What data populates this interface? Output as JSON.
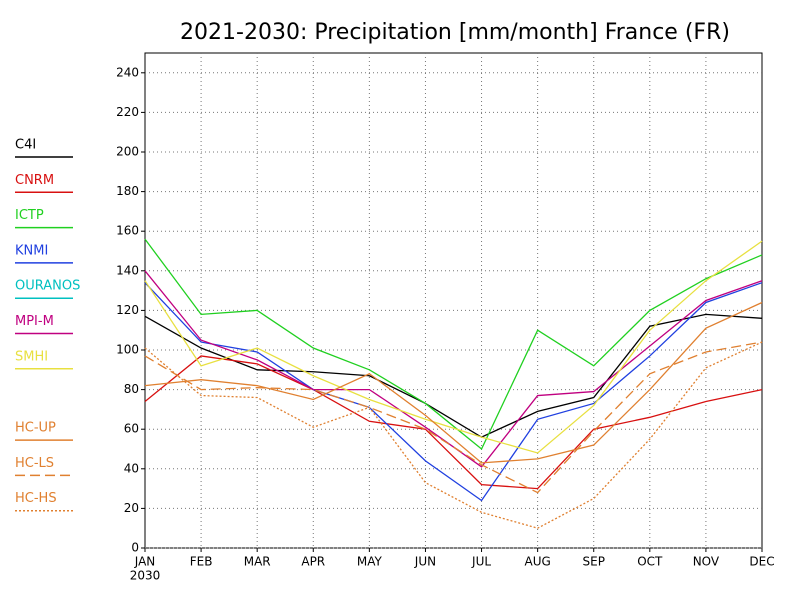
{
  "chart_data": {
    "type": "line",
    "title": "2021-2030: Precipitation [mm/month] France (FR)",
    "categories": [
      "JAN",
      "FEB",
      "MAR",
      "APR",
      "MAY",
      "JUN",
      "JUL",
      "AUG",
      "SEP",
      "OCT",
      "NOV",
      "DEC"
    ],
    "year_label": "2030",
    "ylim": [
      0,
      250
    ],
    "yticks": [
      0,
      20,
      40,
      60,
      80,
      100,
      120,
      140,
      160,
      180,
      200,
      220,
      240
    ],
    "grid": true,
    "legend": "left",
    "series": [
      {
        "name": "C4I",
        "color": "#000000",
        "dash": "solid",
        "values": [
          117,
          101,
          90,
          89,
          87,
          73,
          56,
          69,
          76,
          112,
          118,
          116
        ]
      },
      {
        "name": "CNRM",
        "color": "#d81010",
        "dash": "solid",
        "values": [
          74,
          97,
          93,
          80,
          64,
          60,
          32,
          30,
          60,
          66,
          74,
          80
        ]
      },
      {
        "name": "ICTP",
        "color": "#20d020",
        "dash": "solid",
        "values": [
          156,
          118,
          120,
          101,
          90,
          73,
          50,
          110,
          92,
          120,
          136,
          148
        ]
      },
      {
        "name": "KNMI",
        "color": "#2040e0",
        "dash": "solid",
        "values": [
          134,
          104,
          99,
          80,
          71,
          44,
          24,
          65,
          73,
          97,
          124,
          134
        ]
      },
      {
        "name": "OURANOS",
        "color": "#00c0c0",
        "dash": "solid",
        "values": [
          null,
          null,
          null,
          null,
          null,
          null,
          null,
          null,
          null,
          null,
          null,
          null
        ]
      },
      {
        "name": "MPI-M",
        "color": "#c00080",
        "dash": "solid",
        "values": [
          140,
          105,
          95,
          80,
          80,
          61,
          41,
          77,
          79,
          102,
          125,
          135
        ]
      },
      {
        "name": "SMHI",
        "color": "#e8e040",
        "dash": "solid",
        "values": [
          135,
          92,
          101,
          87,
          75,
          65,
          56,
          48,
          72,
          110,
          135,
          155
        ]
      },
      {
        "name": "HC-UP",
        "color": "#e08030",
        "dash": "solid",
        "values": [
          82,
          85,
          82,
          75,
          88,
          67,
          43,
          45,
          52,
          80,
          111,
          124
        ]
      },
      {
        "name": "HC-LS",
        "color": "#e08030",
        "dash": "dashed",
        "values": [
          97,
          80,
          81,
          80,
          71,
          60,
          42,
          28,
          59,
          88,
          99,
          104
        ]
      },
      {
        "name": "HC-HS",
        "color": "#e08030",
        "dash": "dotted",
        "values": [
          101,
          77,
          76,
          61,
          71,
          33,
          18,
          10,
          25,
          55,
          91,
          104
        ]
      }
    ]
  }
}
